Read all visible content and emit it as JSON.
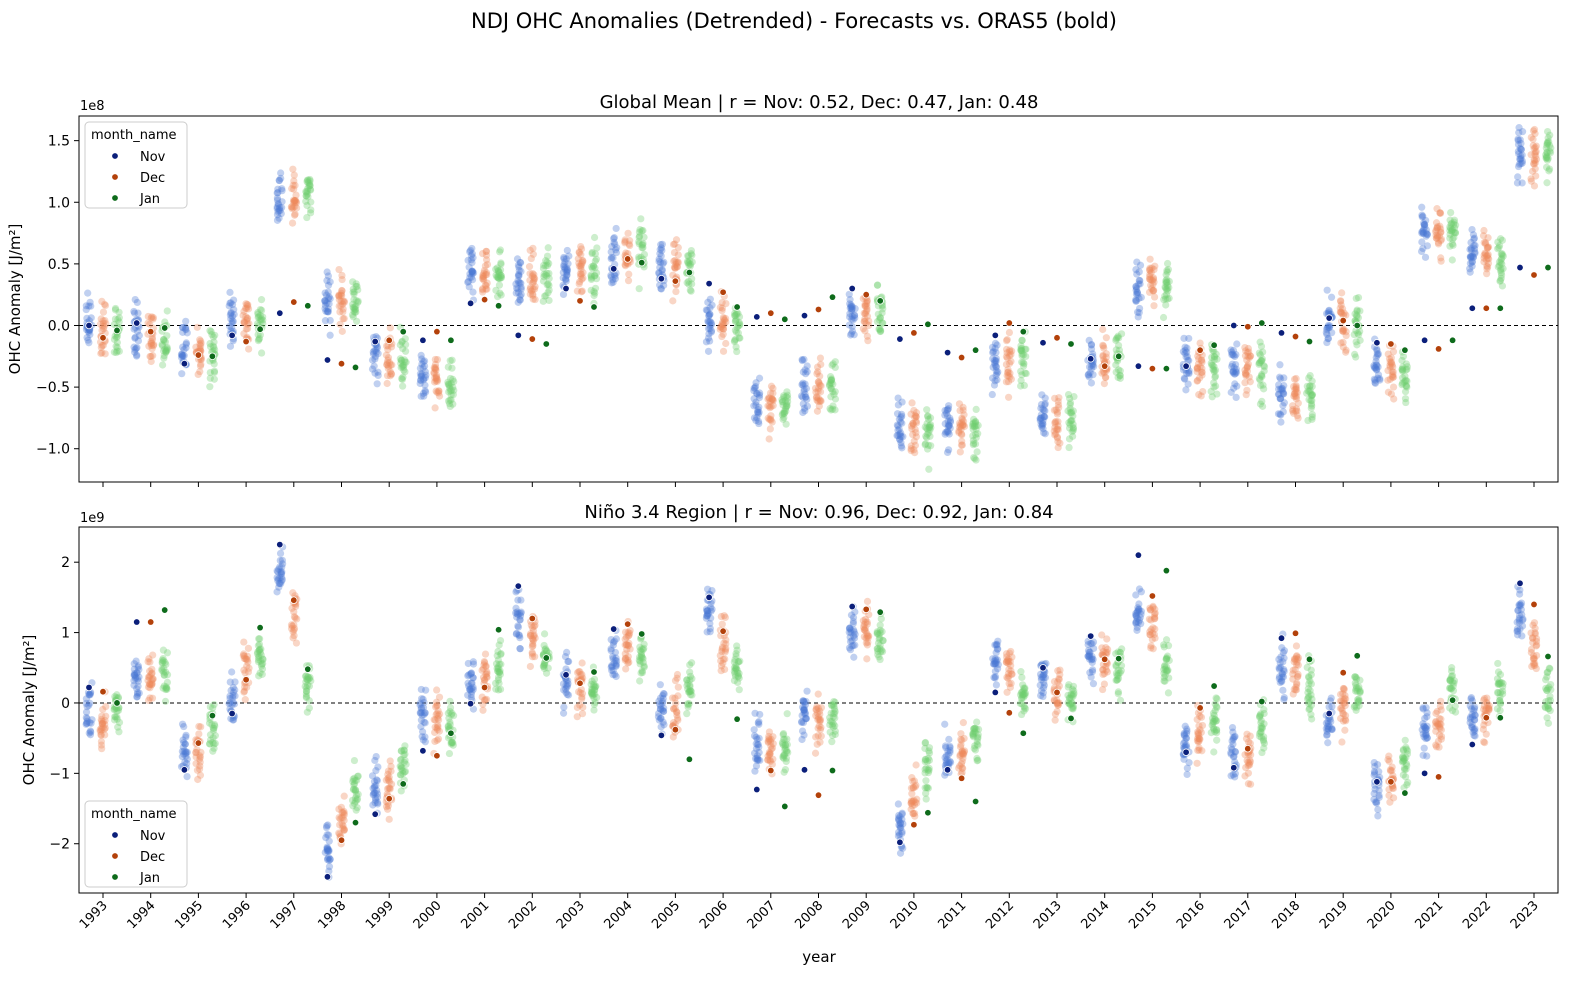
{
  "figure": {
    "suptitle": "NDJ OHC Anomalies (Detrended) - Forecasts vs. ORAS5 (bold)",
    "xlabel": "year"
  },
  "colors": {
    "observed": {
      "Nov": "#0b1f7a",
      "Dec": "#b3410a",
      "Jan": "#0e6b1b"
    },
    "forecast": {
      "Nov": "#4a78d4",
      "Dec": "#ef8a5c",
      "Jan": "#6fce6f"
    }
  },
  "chart_data": [
    {
      "type": "scatter",
      "title": "Global Mean | r = Nov: 0.52, Dec: 0.47, Jan: 0.48",
      "ylabel": "OHC Anomaly [J/m²]",
      "offset_text": "1e8",
      "ylim": [
        -1.27,
        1.7
      ],
      "yticks": [
        -1.0,
        -0.5,
        0.0,
        0.5,
        1.0,
        1.5
      ],
      "ytick_labels": [
        "−1.0",
        "−0.5",
        "0.0",
        "0.5",
        "1.0",
        "1.5"
      ],
      "legend": {
        "title": "month_name",
        "entries": [
          "Nov",
          "Dec",
          "Jan"
        ],
        "position": "upper left"
      },
      "grid": false,
      "zero_line": true,
      "x": [
        1993,
        1994,
        1995,
        1996,
        1997,
        1998,
        1999,
        2000,
        2001,
        2002,
        2003,
        2004,
        2005,
        2006,
        2007,
        2008,
        2009,
        2010,
        2011,
        2012,
        2013,
        2014,
        2015,
        2016,
        2017,
        2018,
        2019,
        2020,
        2021,
        2022,
        2023
      ],
      "series": [
        {
          "name": "Nov",
          "kind": "ORAS5",
          "values": [
            0.0,
            0.02,
            -0.31,
            -0.08,
            0.1,
            -0.28,
            -0.13,
            -0.12,
            0.18,
            -0.08,
            0.3,
            0.46,
            0.38,
            0.34,
            0.07,
            0.08,
            0.3,
            -0.11,
            -0.22,
            -0.08,
            -0.14,
            -0.27,
            -0.33,
            -0.33,
            0.0,
            -0.06,
            0.06,
            -0.14,
            -0.12,
            0.14,
            0.47
          ]
        },
        {
          "name": "Dec",
          "kind": "ORAS5",
          "values": [
            -0.1,
            -0.05,
            -0.24,
            -0.13,
            0.19,
            -0.31,
            -0.12,
            -0.05,
            0.21,
            -0.11,
            0.2,
            0.54,
            0.36,
            0.27,
            0.1,
            0.13,
            0.25,
            -0.06,
            -0.26,
            0.02,
            -0.1,
            -0.33,
            -0.35,
            -0.2,
            -0.01,
            -0.09,
            0.04,
            -0.15,
            -0.19,
            0.14,
            0.41
          ]
        },
        {
          "name": "Jan",
          "kind": "ORAS5",
          "values": [
            -0.04,
            -0.02,
            -0.25,
            -0.03,
            0.16,
            -0.34,
            -0.05,
            -0.12,
            0.16,
            -0.15,
            0.15,
            0.51,
            0.43,
            0.15,
            0.05,
            0.23,
            0.2,
            0.01,
            -0.2,
            -0.05,
            -0.15,
            -0.25,
            -0.35,
            -0.16,
            0.02,
            -0.13,
            0.0,
            -0.2,
            -0.12,
            0.14,
            0.47
          ]
        },
        {
          "name": "Nov",
          "kind": "forecast ensemble mean",
          "values": [
            0.0,
            -0.05,
            -0.19,
            0.03,
            1.02,
            0.21,
            -0.25,
            -0.42,
            0.43,
            0.38,
            0.43,
            0.56,
            0.48,
            0.02,
            -0.68,
            -0.5,
            0.1,
            -0.85,
            -0.82,
            -0.33,
            -0.75,
            -0.27,
            0.3,
            -0.3,
            -0.35,
            -0.6,
            0.04,
            -0.32,
            0.78,
            0.58,
            1.4
          ]
        },
        {
          "name": "Dec",
          "kind": "forecast ensemble mean",
          "values": [
            -0.02,
            -0.08,
            -0.22,
            0.04,
            1.06,
            0.2,
            -0.27,
            -0.45,
            0.42,
            0.4,
            0.44,
            0.55,
            0.45,
            0.02,
            -0.66,
            -0.5,
            0.11,
            -0.86,
            -0.82,
            -0.32,
            -0.77,
            -0.27,
            0.32,
            -0.35,
            -0.38,
            -0.58,
            0.05,
            -0.37,
            0.77,
            0.57,
            1.4
          ]
        },
        {
          "name": "Jan",
          "kind": "forecast ensemble mean",
          "values": [
            -0.03,
            -0.1,
            -0.25,
            0.0,
            1.09,
            0.19,
            -0.28,
            -0.5,
            0.42,
            0.41,
            0.45,
            0.58,
            0.44,
            0.02,
            -0.63,
            -0.48,
            0.12,
            -0.87,
            -0.86,
            -0.3,
            -0.77,
            -0.27,
            0.33,
            -0.35,
            -0.42,
            -0.57,
            0.02,
            -0.4,
            0.75,
            0.55,
            1.4
          ]
        }
      ]
    },
    {
      "type": "scatter",
      "title": "Niño 3.4 Region | r = Nov: 0.96, Dec: 0.92, Jan: 0.84",
      "ylabel": "OHC Anomaly [J/m²]",
      "offset_text": "1e9",
      "ylim": [
        -2.7,
        2.5
      ],
      "yticks": [
        -2,
        -1,
        0,
        1,
        2
      ],
      "ytick_labels": [
        "−2",
        "−1",
        "0",
        "1",
        "2"
      ],
      "legend": {
        "title": "month_name",
        "entries": [
          "Nov",
          "Dec",
          "Jan"
        ],
        "position": "lower left"
      },
      "grid": false,
      "zero_line": true,
      "x": [
        1993,
        1994,
        1995,
        1996,
        1997,
        1998,
        1999,
        2000,
        2001,
        2002,
        2003,
        2004,
        2005,
        2006,
        2007,
        2008,
        2009,
        2010,
        2011,
        2012,
        2013,
        2014,
        2015,
        2016,
        2017,
        2018,
        2019,
        2020,
        2021,
        2022,
        2023
      ],
      "series": [
        {
          "name": "Nov",
          "kind": "ORAS5",
          "values": [
            0.22,
            1.15,
            -0.95,
            -0.15,
            2.25,
            -2.47,
            -1.58,
            -0.68,
            -0.01,
            1.66,
            0.4,
            1.05,
            -0.46,
            1.5,
            -1.23,
            -0.95,
            1.37,
            -1.98,
            -0.95,
            0.15,
            0.5,
            0.95,
            2.1,
            -0.7,
            -0.92,
            0.92,
            -0.15,
            -1.12,
            -1.0,
            -0.59,
            1.7
          ]
        },
        {
          "name": "Dec",
          "kind": "ORAS5",
          "values": [
            0.16,
            1.15,
            -0.57,
            0.33,
            1.46,
            -1.95,
            -1.36,
            -0.75,
            0.22,
            1.2,
            0.28,
            1.12,
            -0.38,
            1.02,
            -0.96,
            -1.31,
            1.33,
            -1.73,
            -1.07,
            -0.14,
            0.15,
            0.62,
            1.52,
            -0.07,
            -0.65,
            0.99,
            0.43,
            -1.12,
            -1.05,
            -0.21,
            1.4
          ]
        },
        {
          "name": "Jan",
          "kind": "ORAS5",
          "values": [
            0.0,
            1.32,
            -0.18,
            1.07,
            0.48,
            -1.7,
            -1.15,
            -0.43,
            1.04,
            0.64,
            0.44,
            0.98,
            -0.8,
            -0.23,
            -1.47,
            -0.96,
            1.29,
            -1.56,
            -1.4,
            -0.43,
            -0.22,
            0.63,
            1.88,
            0.24,
            0.02,
            0.62,
            0.67,
            -1.28,
            0.04,
            -0.21,
            0.66
          ]
        },
        {
          "name": "Nov",
          "kind": "forecast ensemble mean",
          "values": [
            -0.15,
            0.4,
            -0.7,
            0.05,
            1.85,
            -2.05,
            -1.2,
            -0.15,
            0.25,
            1.15,
            0.25,
            0.65,
            -0.1,
            1.3,
            -0.55,
            -0.15,
            1.0,
            -1.75,
            -0.75,
            0.55,
            0.45,
            0.65,
            1.3,
            -0.6,
            -0.75,
            0.5,
            -0.25,
            -1.15,
            -0.45,
            -0.2,
            1.2
          ]
        },
        {
          "name": "Dec",
          "kind": "forecast ensemble mean",
          "values": [
            -0.25,
            0.35,
            -0.75,
            0.45,
            1.25,
            -1.65,
            -1.25,
            -0.25,
            0.3,
            0.95,
            0.25,
            0.8,
            -0.05,
            0.85,
            -0.7,
            -0.3,
            1.05,
            -1.35,
            -0.75,
            0.5,
            0.2,
            0.6,
            1.1,
            -0.45,
            -0.75,
            0.45,
            -0.1,
            -1.1,
            -0.35,
            -0.15,
            0.75
          ]
        },
        {
          "name": "Jan",
          "kind": "forecast ensemble mean",
          "values": [
            -0.1,
            0.45,
            -0.35,
            0.65,
            0.3,
            -1.25,
            -0.9,
            -0.35,
            0.45,
            0.6,
            0.2,
            0.65,
            0.15,
            0.5,
            -0.6,
            -0.25,
            0.9,
            -0.95,
            -0.55,
            0.15,
            0.05,
            0.45,
            0.55,
            -0.25,
            -0.4,
            0.25,
            0.15,
            -0.85,
            0.2,
            0.2,
            0.15
          ]
        }
      ]
    }
  ]
}
